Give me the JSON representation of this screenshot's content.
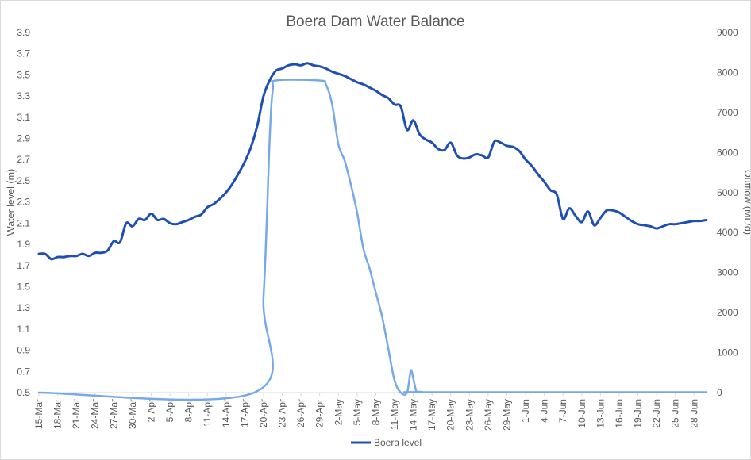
{
  "chart_data": {
    "type": "line",
    "title": "Boera Dam  Water Balance",
    "ylabel": "Water level (m)",
    "y2label": "Outflow (ML/d)",
    "ylim": [
      0.5,
      3.9
    ],
    "y2lim": [
      0,
      9000
    ],
    "yticks": [
      "3.9",
      "3.7",
      "3.5",
      "3.3",
      "3.1",
      "2.9",
      "2.7",
      "2.5",
      "2.3",
      "2.1",
      "1.9",
      "1.7",
      "1.5",
      "1.3",
      "1.1",
      "0.9",
      "0.7",
      "0.5"
    ],
    "y2ticks": [
      "9000",
      "8000",
      "7000",
      "6000",
      "5000",
      "4000",
      "3000",
      "2000",
      "1000",
      "0"
    ],
    "xticks": [
      "15-Mar",
      "18-Mar",
      "21-Mar",
      "24-Mar",
      "27-Mar",
      "30-Mar",
      "2-Apr",
      "5-Apr",
      "8-Apr",
      "11-Apr",
      "14-Apr",
      "17-Apr",
      "20-Apr",
      "23-Apr",
      "26-Apr",
      "29-Apr",
      "2-May",
      "5-May",
      "8-May",
      "11-May",
      "14-May",
      "17-May",
      "20-May",
      "23-May",
      "26-May",
      "29-May",
      "1-Jun",
      "4-Jun",
      "7-Jun",
      "10-Jun",
      "13-Jun",
      "16-Jun",
      "19-Jun",
      "22-Jun",
      "25-Jun",
      "28-Jun"
    ],
    "legend": "bottom",
    "grid": false,
    "series": [
      {
        "name": "Boera level",
        "axis": "left",
        "color": "#1f4fb4",
        "x": [
          0,
          1,
          2,
          3,
          4,
          5,
          6,
          7,
          8,
          9,
          10,
          11,
          12,
          13,
          14,
          15,
          16,
          17,
          18,
          19,
          20,
          21,
          22,
          23,
          24,
          25,
          26,
          27,
          28,
          29,
          30,
          31,
          32,
          33,
          34,
          35,
          36,
          37,
          38,
          39,
          40,
          41,
          42,
          43,
          44,
          45,
          46,
          47,
          48,
          49,
          50,
          51,
          52,
          53,
          54,
          55,
          56,
          57,
          58,
          59,
          60,
          61,
          62,
          63,
          64,
          65,
          66,
          67,
          68,
          69,
          70,
          71,
          72,
          73,
          74,
          75,
          76,
          77,
          78,
          79,
          80,
          81,
          82,
          83,
          84,
          85,
          86,
          87,
          88,
          89,
          90,
          91,
          92,
          93,
          94,
          95,
          96,
          97,
          98,
          99,
          100,
          101,
          102,
          103,
          104,
          105,
          106,
          107
        ],
        "values": [
          1.81,
          1.81,
          1.76,
          1.78,
          1.78,
          1.79,
          1.79,
          1.81,
          1.79,
          1.82,
          1.82,
          1.84,
          1.93,
          1.92,
          2.1,
          2.07,
          2.14,
          2.13,
          2.19,
          2.13,
          2.14,
          2.1,
          2.09,
          2.11,
          2.13,
          2.16,
          2.18,
          2.25,
          2.28,
          2.33,
          2.39,
          2.47,
          2.57,
          2.68,
          2.82,
          3.02,
          3.3,
          3.45,
          3.54,
          3.56,
          3.59,
          3.6,
          3.59,
          3.61,
          3.59,
          3.58,
          3.56,
          3.53,
          3.51,
          3.49,
          3.46,
          3.43,
          3.41,
          3.38,
          3.35,
          3.31,
          3.28,
          3.22,
          3.2,
          2.98,
          3.07,
          2.94,
          2.89,
          2.86,
          2.8,
          2.79,
          2.86,
          2.74,
          2.71,
          2.72,
          2.75,
          2.74,
          2.72,
          2.87,
          2.86,
          2.83,
          2.82,
          2.78,
          2.7,
          2.64,
          2.56,
          2.49,
          2.41,
          2.37,
          2.14,
          2.24,
          2.17,
          2.11,
          2.21,
          2.08,
          2.15,
          2.22,
          2.22,
          2.2,
          2.16,
          2.12,
          2.09,
          2.08,
          2.07,
          2.05,
          2.07,
          2.09,
          2.09,
          2.1,
          2.11,
          2.12,
          2.12,
          2.13
        ]
      },
      {
        "name": "Outflow",
        "axis": "right",
        "color": "#76a9ea",
        "x": [
          0,
          34.5,
          36,
          37,
          37.5,
          38,
          45,
          46,
          47,
          48,
          49,
          50,
          51,
          52,
          53,
          54,
          55,
          56,
          57,
          58,
          59,
          59.6,
          60,
          60.5,
          61,
          61.5,
          62,
          107
        ],
        "values": [
          0,
          0,
          2400,
          6400,
          7600,
          7800,
          7800,
          7700,
          7200,
          6200,
          5800,
          5200,
          4500,
          3600,
          3100,
          2500,
          1900,
          1100,
          300,
          0,
          0,
          550,
          350,
          30,
          20,
          15,
          10,
          10
        ]
      }
    ]
  }
}
